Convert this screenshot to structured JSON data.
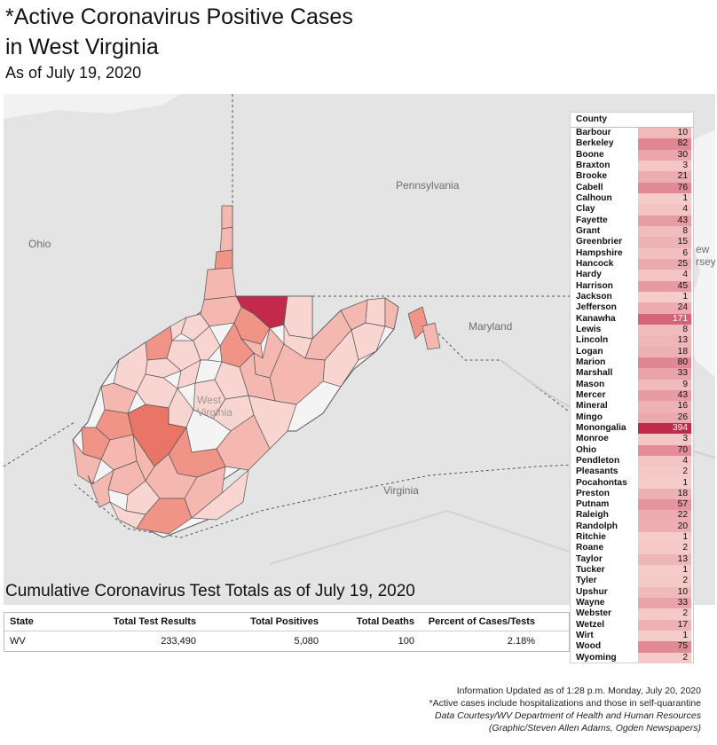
{
  "title_line1": "*Active Coronavirus Positive Cases",
  "title_line2": "in West Virginia",
  "subtitle": "As of July 19, 2020",
  "map_labels": {
    "pennsylvania": "Pennsylvania",
    "ohio": "Ohio",
    "maryland": "Maryland",
    "virginia": "Virginia",
    "west_virginia": "West Virginia",
    "new_jersey_fragment": "ew\nrsey"
  },
  "colors": {
    "map_background": "#e4e4e4",
    "county_lowest": "#f9d5d1",
    "county_low": "#f5b8b0",
    "county_mid": "#f09488",
    "county_high": "#e97567",
    "county_highest": "#c2294a",
    "wv_unfilled": "#f4f4f4"
  },
  "county_table": {
    "header": "County",
    "max_value": 394,
    "rows": [
      {
        "name": "Barbour",
        "value": 10
      },
      {
        "name": "Berkeley",
        "value": 82
      },
      {
        "name": "Boone",
        "value": 30
      },
      {
        "name": "Braxton",
        "value": 3
      },
      {
        "name": "Brooke",
        "value": 21
      },
      {
        "name": "Cabell",
        "value": 76
      },
      {
        "name": "Calhoun",
        "value": 1
      },
      {
        "name": "Clay",
        "value": 4
      },
      {
        "name": "Fayette",
        "value": 43
      },
      {
        "name": "Grant",
        "value": 8
      },
      {
        "name": "Greenbrier",
        "value": 15
      },
      {
        "name": "Hampshire",
        "value": 6
      },
      {
        "name": "Hancock",
        "value": 25
      },
      {
        "name": "Hardy",
        "value": 4
      },
      {
        "name": "Harrison",
        "value": 45
      },
      {
        "name": "Jackson",
        "value": 1
      },
      {
        "name": "Jefferson",
        "value": 24
      },
      {
        "name": "Kanawha",
        "value": 171
      },
      {
        "name": "Lewis",
        "value": 8
      },
      {
        "name": "Lincoln",
        "value": 13
      },
      {
        "name": "Logan",
        "value": 18
      },
      {
        "name": "Marion",
        "value": 80
      },
      {
        "name": "Marshall",
        "value": 33
      },
      {
        "name": "Mason",
        "value": 9
      },
      {
        "name": "Mercer",
        "value": 43
      },
      {
        "name": "Mineral",
        "value": 16
      },
      {
        "name": "Mingo",
        "value": 26
      },
      {
        "name": "Monongalia",
        "value": 394
      },
      {
        "name": "Monroe",
        "value": 3
      },
      {
        "name": "Ohio",
        "value": 70
      },
      {
        "name": "Pendleton",
        "value": 4
      },
      {
        "name": "Pleasants",
        "value": 2
      },
      {
        "name": "Pocahontas",
        "value": 1
      },
      {
        "name": "Preston",
        "value": 18
      },
      {
        "name": "Putnam",
        "value": 57
      },
      {
        "name": "Raleigh",
        "value": 22
      },
      {
        "name": "Randolph",
        "value": 20
      },
      {
        "name": "Ritchie",
        "value": 1
      },
      {
        "name": "Roane",
        "value": 2
      },
      {
        "name": "Taylor",
        "value": 13
      },
      {
        "name": "Tucker",
        "value": 1
      },
      {
        "name": "Tyler",
        "value": 2
      },
      {
        "name": "Upshur",
        "value": 10
      },
      {
        "name": "Wayne",
        "value": 33
      },
      {
        "name": "Webster",
        "value": 2
      },
      {
        "name": "Wetzel",
        "value": 17
      },
      {
        "name": "Wirt",
        "value": 1
      },
      {
        "name": "Wood",
        "value": 75
      },
      {
        "name": "Wyoming",
        "value": 2
      }
    ]
  },
  "totals_title": "Cumulative Coronavirus Test Totals as of July 19, 2020",
  "totals_table": {
    "headers": [
      "State",
      "Total Test Results",
      "Total Positives",
      "Total Deaths",
      "Percent of Cases/Tests"
    ],
    "row": [
      "WV",
      "233,490",
      "5,080",
      "100",
      "2.18%"
    ]
  },
  "footer": {
    "line1": "Information Updated as of 1:28 p.m. Monday, July 20, 2020",
    "line2": "*Active cases include hospitalizations and those in self-quarantine",
    "line3": "Data Courtesy/WV Department of Health and Human Resources",
    "line4": "(Graphic/Steven Allen Adams, Ogden Newspapers)"
  }
}
